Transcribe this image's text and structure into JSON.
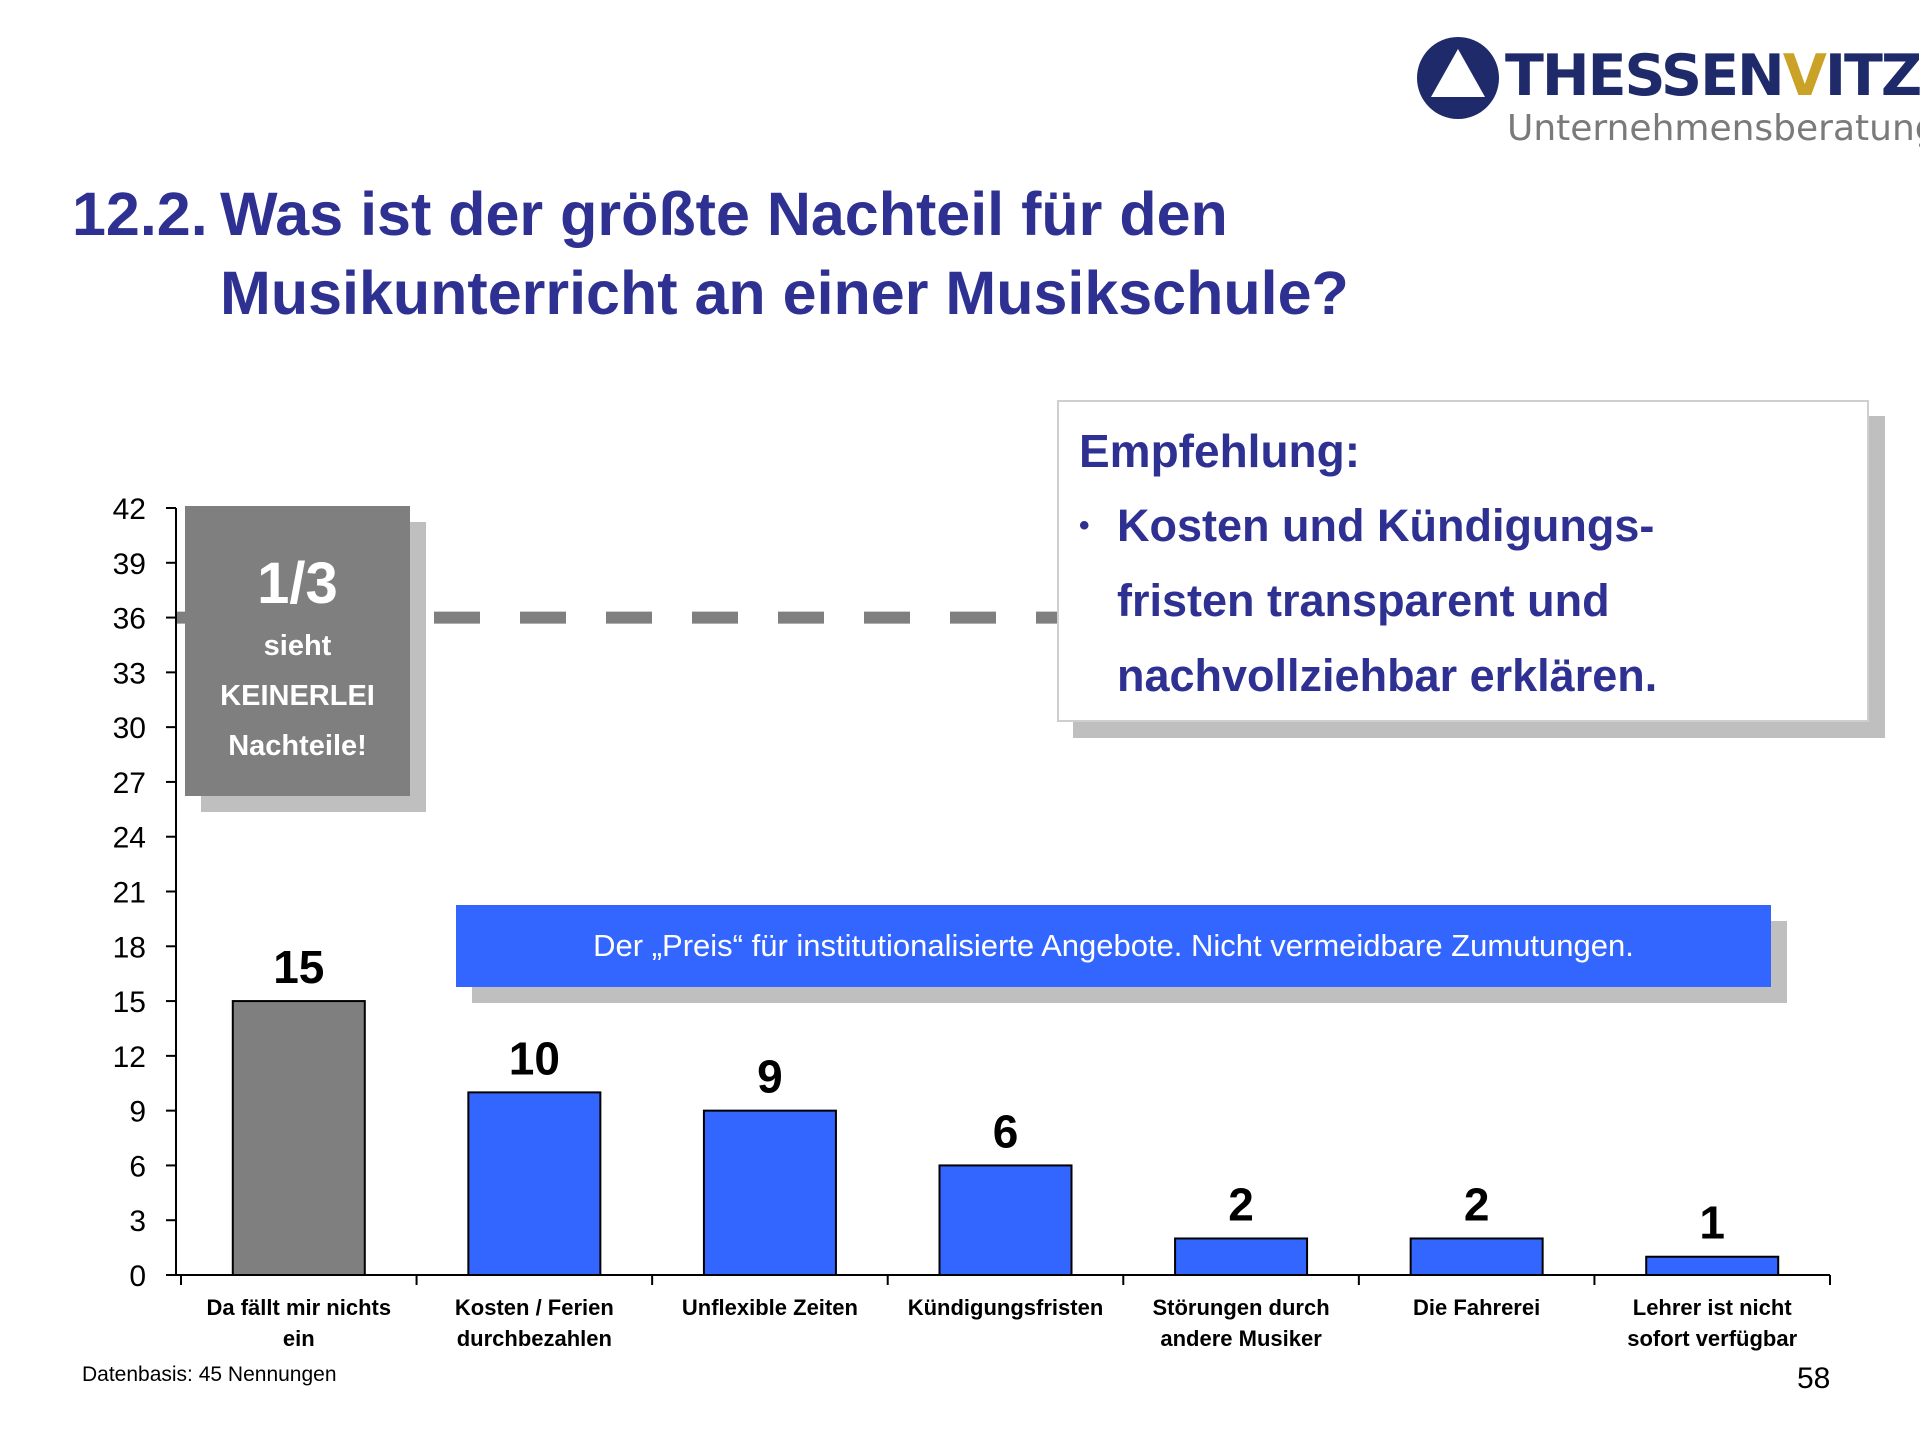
{
  "logo": {
    "name_part1": "THESSEN",
    "name_accent": "V",
    "name_part2": "ITZ",
    "subtitle": "Unternehmensberatung"
  },
  "title": {
    "number": "12.2.",
    "line1": "Was ist der größte Nachteil für den",
    "line2": "Musikunterricht an einer Musikschule?"
  },
  "recommendation": {
    "heading": "Empfehlung:",
    "bullet_lines": [
      "Kosten und Kündigungs-",
      "fristen transparent und",
      "nachvollziehbar erklären."
    ]
  },
  "callout": {
    "fraction": "1/3",
    "line1": "sieht",
    "line2": "KEINERLEI",
    "line3": "Nachteile!"
  },
  "banner": {
    "text": "Der „Preis“ für institutionalisierte Angebote. Nicht vermeidbare Zumutungen."
  },
  "chart_data": {
    "type": "bar",
    "title": "",
    "xlabel": "",
    "ylabel": "",
    "ylim": [
      0,
      42
    ],
    "yticks": [
      0,
      3,
      6,
      9,
      12,
      15,
      18,
      21,
      24,
      27,
      30,
      33,
      36,
      39,
      42
    ],
    "reference_line": {
      "value": 36,
      "style": "dashed"
    },
    "categories": [
      [
        "Da fällt mir nichts",
        "ein"
      ],
      [
        "Kosten / Ferien",
        "durchbezahlen"
      ],
      [
        "Unflexible Zeiten"
      ],
      [
        "Kündigungsfristen"
      ],
      [
        "Störungen durch",
        "andere Musiker"
      ],
      [
        "Die Fahrerei"
      ],
      [
        "Lehrer ist nicht",
        "sofort verfügbar"
      ]
    ],
    "values": [
      15,
      10,
      9,
      6,
      2,
      2,
      1
    ],
    "data_labels": [
      "15",
      "10",
      "9",
      "6",
      "2",
      "2",
      "1"
    ],
    "bar_colors": [
      "#7f7f7f",
      "#3366ff",
      "#3366ff",
      "#3366ff",
      "#3366ff",
      "#3366ff",
      "#3366ff"
    ]
  },
  "footer": {
    "source": "Datenbasis: 45 Nennungen",
    "page_number": "58"
  }
}
